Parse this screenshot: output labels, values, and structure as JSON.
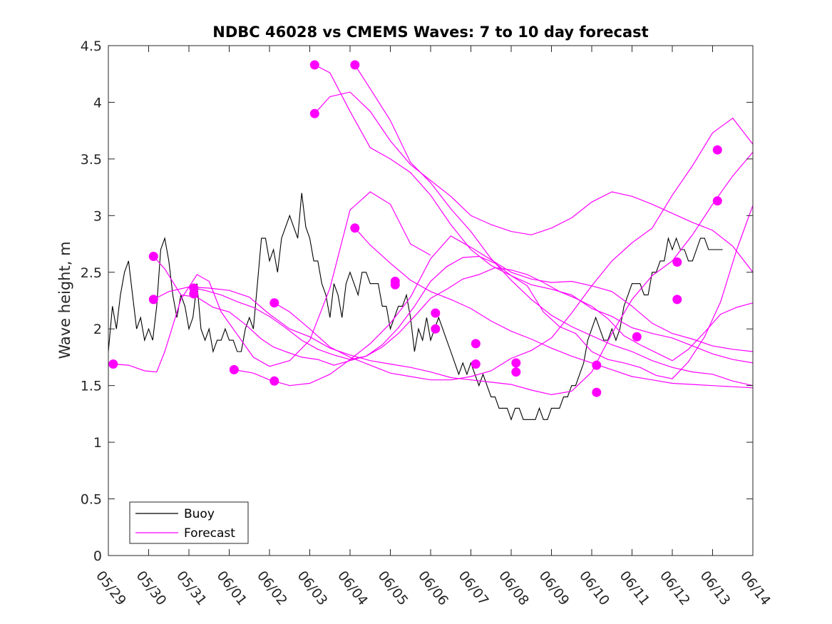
{
  "chart_data": {
    "type": "line",
    "title": "NDBC 46028 vs CMEMS Waves: 7 to 10 day forecast",
    "xlabel": "",
    "ylabel": "Wave height, m",
    "xlim": [
      0,
      16
    ],
    "ylim": [
      0,
      4.5
    ],
    "x_tick_labels": [
      "05/29",
      "05/30",
      "05/31",
      "06/01",
      "06/02",
      "06/03",
      "06/04",
      "06/05",
      "06/06",
      "06/07",
      "06/08",
      "06/09",
      "06/10",
      "06/11",
      "06/12",
      "06/13",
      "06/14"
    ],
    "y_tick_labels": [
      "0",
      "0.5",
      "1",
      "1.5",
      "2",
      "2.5",
      "3",
      "3.5",
      "4",
      "4.5"
    ],
    "grid": false,
    "legend": {
      "location": "bottom-left",
      "entries": [
        "Buoy",
        "Forecast"
      ]
    },
    "colors": {
      "buoy": "#000000",
      "forecast": "#ff00ff"
    },
    "series": [
      {
        "name": "Buoy",
        "x": [
          0.0,
          0.1,
          0.2,
          0.3,
          0.4,
          0.5,
          0.6,
          0.7,
          0.8,
          0.9,
          1.0,
          1.1,
          1.2,
          1.3,
          1.4,
          1.5,
          1.6,
          1.7,
          1.8,
          1.9,
          2.0,
          2.1,
          2.2,
          2.3,
          2.4,
          2.5,
          2.6,
          2.7,
          2.8,
          2.9,
          3.0,
          3.1,
          3.2,
          3.3,
          3.4,
          3.5,
          3.6,
          3.7,
          3.8,
          3.9,
          4.0,
          4.1,
          4.2,
          4.3,
          4.4,
          4.5,
          4.6,
          4.7,
          4.8,
          4.9,
          5.0,
          5.1,
          5.2,
          5.3,
          5.4,
          5.5,
          5.6,
          5.7,
          5.8,
          5.9,
          6.0,
          6.1,
          6.2,
          6.3,
          6.4,
          6.5,
          6.6,
          6.7,
          6.8,
          6.9,
          7.0,
          7.1,
          7.2,
          7.3,
          7.4,
          7.5,
          7.6,
          7.7,
          7.8,
          7.9,
          8.0,
          8.1,
          8.2,
          8.3,
          8.4,
          8.5,
          8.6,
          8.7,
          8.8,
          8.9,
          9.0,
          9.1,
          9.2,
          9.3,
          9.4,
          9.5,
          9.6,
          9.7,
          9.8,
          9.9,
          10.0,
          10.1,
          10.2,
          10.3,
          10.4,
          10.5,
          10.6,
          10.7,
          10.8,
          10.9,
          11.0,
          11.1,
          11.2,
          11.3,
          11.4,
          11.5,
          11.6,
          11.7,
          11.8,
          11.9,
          12.0,
          12.1,
          12.2,
          12.3,
          12.4,
          12.5,
          12.6,
          12.7,
          12.8,
          12.9,
          13.0,
          13.1,
          13.2,
          13.3,
          13.4,
          13.5,
          13.6,
          13.7,
          13.8,
          13.9,
          14.0,
          14.1,
          14.2,
          14.3,
          14.4,
          14.5,
          14.6,
          14.7,
          14.8,
          14.9,
          15.0,
          15.1,
          15.2,
          15.25
        ],
        "y": [
          1.8,
          2.2,
          2.0,
          2.3,
          2.5,
          2.6,
          2.3,
          2.0,
          2.1,
          1.9,
          2.0,
          1.9,
          2.2,
          2.7,
          2.8,
          2.6,
          2.3,
          2.1,
          2.3,
          2.2,
          2.0,
          2.1,
          2.4,
          2.0,
          1.9,
          2.0,
          1.8,
          1.9,
          1.9,
          2.0,
          1.9,
          1.9,
          1.8,
          1.8,
          2.0,
          2.1,
          2.0,
          2.4,
          2.8,
          2.8,
          2.6,
          2.7,
          2.5,
          2.8,
          2.9,
          3.0,
          2.9,
          2.8,
          3.2,
          2.9,
          2.8,
          2.6,
          2.6,
          2.4,
          2.3,
          2.1,
          2.4,
          2.3,
          2.1,
          2.4,
          2.5,
          2.4,
          2.3,
          2.5,
          2.5,
          2.4,
          2.4,
          2.4,
          2.2,
          2.2,
          2.0,
          2.1,
          2.2,
          2.2,
          2.3,
          2.1,
          1.8,
          2.0,
          1.9,
          2.1,
          1.9,
          2.0,
          2.1,
          2.0,
          1.9,
          1.8,
          1.7,
          1.6,
          1.7,
          1.6,
          1.7,
          1.6,
          1.5,
          1.6,
          1.5,
          1.4,
          1.4,
          1.3,
          1.3,
          1.3,
          1.2,
          1.3,
          1.3,
          1.2,
          1.2,
          1.2,
          1.2,
          1.3,
          1.2,
          1.2,
          1.3,
          1.3,
          1.3,
          1.4,
          1.4,
          1.5,
          1.5,
          1.6,
          1.7,
          1.9,
          2.0,
          2.1,
          2.0,
          1.9,
          1.9,
          2.0,
          1.9,
          2.0,
          2.2,
          2.3,
          2.4,
          2.4,
          2.4,
          2.3,
          2.3,
          2.5,
          2.5,
          2.6,
          2.6,
          2.8,
          2.7,
          2.8,
          2.7,
          2.7,
          2.6,
          2.6,
          2.7,
          2.8,
          2.8,
          2.7,
          2.7,
          2.7,
          2.7,
          2.7
        ]
      }
    ],
    "forecasts": [
      {
        "x": [
          0.12,
          0.5,
          0.9,
          1.2,
          1.4,
          1.8,
          2.2,
          2.5,
          2.8,
          3.2,
          3.6,
          4.0,
          4.5,
          5.0,
          5.5,
          6.0,
          6.5,
          7.0,
          7.5,
          8.0
        ],
        "y": [
          1.69,
          1.68,
          1.63,
          1.62,
          1.8,
          2.26,
          2.48,
          2.42,
          2.15,
          1.95,
          1.75,
          1.67,
          1.72,
          1.9,
          2.36,
          3.05,
          3.21,
          3.1,
          2.75,
          2.65
        ]
      },
      {
        "x": [
          1.12,
          1.4,
          1.8,
          2.2,
          2.6,
          3.0,
          3.4,
          3.8,
          4.1,
          4.4,
          4.8,
          5.2,
          5.6,
          6.0,
          6.4,
          6.8,
          7.2,
          7.6,
          8.0,
          8.4,
          8.8,
          9.2,
          9.6,
          10.0,
          10.4,
          10.8,
          11.2,
          11.6,
          12.0,
          12.4,
          12.8,
          13.2,
          13.6,
          14.0,
          14.4,
          14.8,
          15.2,
          15.6,
          16.0
        ],
        "y": [
          2.64,
          2.53,
          2.3,
          2.28,
          2.19,
          2.15,
          2.04,
          1.91,
          1.84,
          1.8,
          1.75,
          1.73,
          1.68,
          1.72,
          1.76,
          1.86,
          2.01,
          2.2,
          2.42,
          2.55,
          2.63,
          2.64,
          2.58,
          2.47,
          2.38,
          2.15,
          2.02,
          1.96,
          1.8,
          1.73,
          1.7,
          1.66,
          1.59,
          1.56,
          1.71,
          1.93,
          2.24,
          2.7,
          3.09
        ]
      },
      {
        "x": [
          1.12,
          1.5,
          2.0,
          2.5,
          3.0,
          3.5,
          4.0,
          4.5,
          5.0,
          5.5,
          6.0,
          6.5,
          7.0,
          7.5,
          8.0,
          8.5,
          9.0,
          9.5,
          10.0,
          10.5,
          11.0,
          11.5,
          12.0,
          12.5,
          13.0,
          13.5,
          14.0,
          14.5,
          15.0,
          15.5,
          16.0
        ],
        "y": [
          2.26,
          2.33,
          2.37,
          2.36,
          2.34,
          2.28,
          2.13,
          2.0,
          1.93,
          1.83,
          1.77,
          1.72,
          1.69,
          1.66,
          1.62,
          1.57,
          1.55,
          1.53,
          1.51,
          1.46,
          1.42,
          1.45,
          1.62,
          1.96,
          2.26,
          2.47,
          2.6,
          2.83,
          3.1,
          3.35,
          3.56
        ]
      },
      {
        "x": [
          2.12,
          2.4,
          2.8,
          3.2,
          3.6,
          4.0,
          4.4,
          4.8,
          5.2,
          5.6,
          6.0,
          6.4,
          6.8,
          7.2,
          7.6,
          8.0,
          8.4,
          8.8,
          9.2,
          9.6,
          10.0,
          10.4,
          10.8,
          11.2,
          11.6,
          12.0,
          12.4,
          12.8,
          13.2,
          13.6,
          14.0,
          14.4,
          14.8,
          15.2,
          15.6,
          16.0
        ],
        "y": [
          2.36,
          2.34,
          2.3,
          2.24,
          2.19,
          2.11,
          2.01,
          1.9,
          1.82,
          1.77,
          1.73,
          1.76,
          1.84,
          1.96,
          2.11,
          2.27,
          2.35,
          2.44,
          2.48,
          2.54,
          2.52,
          2.48,
          2.41,
          2.33,
          2.27,
          2.2,
          2.09,
          1.94,
          1.86,
          1.79,
          1.72,
          1.82,
          1.97,
          2.13,
          2.19,
          2.23
        ]
      },
      {
        "x": [
          3.12,
          3.6,
          4.0,
          4.5,
          5.0,
          5.5,
          6.0,
          6.5,
          7.0,
          7.5,
          8.0,
          8.5,
          9.0,
          9.5,
          10.0,
          10.5,
          11.0,
          11.5,
          12.0,
          12.5,
          13.0,
          13.5,
          14.0,
          14.5,
          15.0,
          15.5,
          16.0
        ],
        "y": [
          1.64,
          1.61,
          1.55,
          1.5,
          1.52,
          1.6,
          1.73,
          1.87,
          2.05,
          2.28,
          2.62,
          2.82,
          2.72,
          2.61,
          2.5,
          2.44,
          2.41,
          2.42,
          2.38,
          2.33,
          2.2,
          2.05,
          1.96,
          1.91,
          1.85,
          1.82,
          1.8
        ]
      },
      {
        "x": [
          4.12,
          4.5,
          5.0,
          5.5,
          6.0,
          6.5,
          7.0,
          7.5,
          8.0,
          8.5,
          9.0,
          9.5,
          10.0,
          10.5,
          11.0,
          11.5,
          12.0,
          12.5,
          13.0,
          13.5,
          14.0,
          14.5,
          15.0,
          15.5,
          16.0
        ],
        "y": [
          2.23,
          2.15,
          2.0,
          1.84,
          1.75,
          1.68,
          1.61,
          1.58,
          1.55,
          1.55,
          1.58,
          1.63,
          1.74,
          1.81,
          1.92,
          2.14,
          2.38,
          2.6,
          2.76,
          2.89,
          3.18,
          3.44,
          3.73,
          3.86,
          3.63
        ]
      },
      {
        "x": [
          5.12,
          5.5,
          6.0,
          6.5,
          7.0,
          7.5,
          8.0,
          8.5,
          9.0,
          9.5,
          10.0,
          10.5,
          11.0,
          11.5,
          12.0,
          12.5,
          13.0,
          13.5,
          14.0,
          14.5,
          15.0,
          15.5,
          16.0
        ],
        "y": [
          4.33,
          4.26,
          3.92,
          3.6,
          3.5,
          3.38,
          3.18,
          2.92,
          2.7,
          2.56,
          2.47,
          2.39,
          2.35,
          2.3,
          2.18,
          2.11,
          2.01,
          1.96,
          1.92,
          1.85,
          1.78,
          1.73,
          1.7
        ]
      },
      {
        "x": [
          5.12,
          5.5,
          6.0,
          6.5,
          7.0,
          7.5,
          8.0,
          8.5,
          9.0,
          9.5,
          10.0,
          10.5,
          11.0,
          11.5,
          12.0,
          12.5,
          13.0,
          13.5,
          14.0,
          14.5,
          15.0,
          15.5,
          16.0
        ],
        "y": [
          3.9,
          4.05,
          4.09,
          3.92,
          3.66,
          3.45,
          3.31,
          3.17,
          3.0,
          2.92,
          2.86,
          2.83,
          2.89,
          2.98,
          3.12,
          3.21,
          3.17,
          3.1,
          3.02,
          2.94,
          2.87,
          2.73,
          2.5
        ]
      },
      {
        "x": [
          6.12,
          6.5,
          7.0,
          7.5,
          8.0,
          8.5,
          9.0,
          9.5,
          10.0,
          10.5,
          11.0,
          11.5,
          12.0,
          12.5,
          13.0,
          13.5,
          14.0,
          14.5,
          15.0,
          15.5,
          16.0
        ],
        "y": [
          4.33,
          4.12,
          3.84,
          3.47,
          3.29,
          3.06,
          2.86,
          2.62,
          2.43,
          2.26,
          2.12,
          2.02,
          1.94,
          1.86,
          1.8,
          1.72,
          1.66,
          1.62,
          1.6,
          1.54,
          1.5
        ]
      },
      {
        "x": [
          6.12,
          6.5,
          7.0,
          7.5,
          8.0,
          8.5,
          9.0,
          9.5,
          10.0,
          10.5,
          11.0,
          11.5,
          12.0,
          12.5,
          13.0,
          13.5,
          14.0,
          14.5,
          15.0,
          15.5,
          16.0
        ],
        "y": [
          2.89,
          2.74,
          2.58,
          2.43,
          2.33,
          2.26,
          2.18,
          2.07,
          1.98,
          1.91,
          1.83,
          1.76,
          1.7,
          1.64,
          1.58,
          1.55,
          1.52,
          1.51,
          1.5,
          1.49,
          1.48
        ]
      }
    ],
    "forecast_dots": [
      {
        "x": 0.12,
        "y": 1.69
      },
      {
        "x": 1.12,
        "y": 2.64
      },
      {
        "x": 1.12,
        "y": 2.26
      },
      {
        "x": 2.12,
        "y": 2.36
      },
      {
        "x": 2.12,
        "y": 2.31
      },
      {
        "x": 3.12,
        "y": 1.64
      },
      {
        "x": 4.12,
        "y": 2.23
      },
      {
        "x": 4.12,
        "y": 1.54
      },
      {
        "x": 5.12,
        "y": 4.33
      },
      {
        "x": 5.12,
        "y": 3.9
      },
      {
        "x": 6.12,
        "y": 4.33
      },
      {
        "x": 6.12,
        "y": 2.89
      },
      {
        "x": 7.12,
        "y": 2.42
      },
      {
        "x": 7.12,
        "y": 2.39
      },
      {
        "x": 8.12,
        "y": 2.14
      },
      {
        "x": 8.12,
        "y": 2.0
      },
      {
        "x": 9.12,
        "y": 1.87
      },
      {
        "x": 9.12,
        "y": 1.69
      },
      {
        "x": 10.12,
        "y": 1.7
      },
      {
        "x": 10.12,
        "y": 1.62
      },
      {
        "x": 12.12,
        "y": 1.68
      },
      {
        "x": 12.12,
        "y": 1.44
      },
      {
        "x": 13.12,
        "y": 1.93
      },
      {
        "x": 14.12,
        "y": 2.59
      },
      {
        "x": 14.12,
        "y": 2.26
      },
      {
        "x": 15.12,
        "y": 3.58
      },
      {
        "x": 15.12,
        "y": 3.13
      }
    ]
  }
}
